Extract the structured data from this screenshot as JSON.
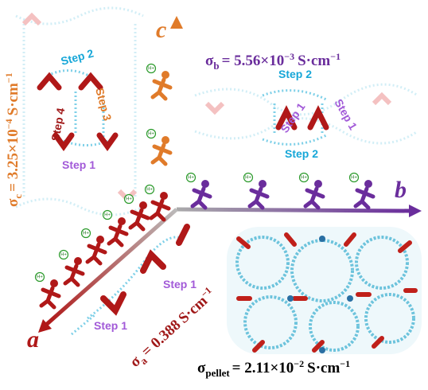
{
  "axes": {
    "c": "c",
    "b": "b",
    "a": "a"
  },
  "conductivity": {
    "b": {
      "symbol": "σ",
      "sub": "b",
      "value": "= 5.56×10",
      "exp": "−3",
      "unit": "S·cm",
      "unit_exp": "−1"
    },
    "c": {
      "symbol": "σ",
      "sub": "c",
      "value": "= 3.25×10",
      "exp": "−4",
      "unit": "S·cm",
      "unit_exp": "−1"
    },
    "a": {
      "symbol": "σ",
      "sub": "a",
      "value": "= 0.388",
      "unit": "S·cm",
      "unit_exp": "−1"
    },
    "pellet": {
      "symbol": "σ",
      "sub": "pellet",
      "value": "= 2.11×10",
      "exp": "−2",
      "unit": "S·cm",
      "unit_exp": "−1"
    }
  },
  "steps": [
    "Step 2",
    "Step 3",
    "Step 4",
    "Step 1",
    "Step 2",
    "Step 1",
    "Step 1",
    "Step 2",
    "Step 1",
    "Step 1"
  ],
  "proton": "H+"
}
